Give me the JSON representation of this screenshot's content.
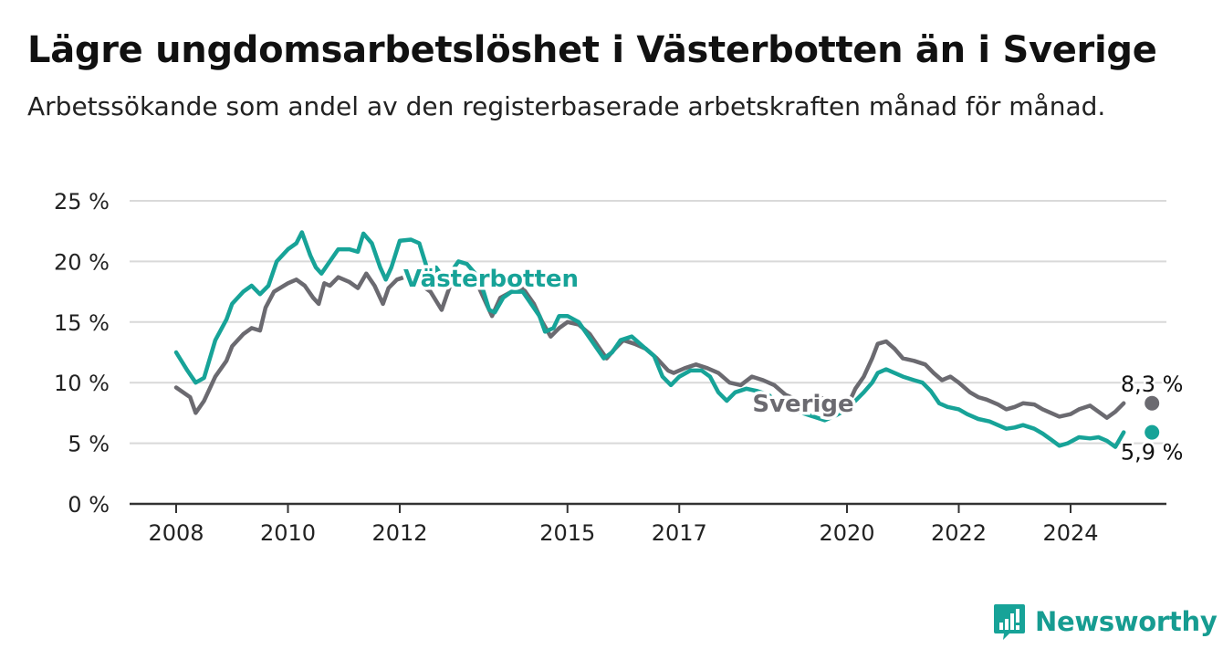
{
  "header": {
    "title": "Lägre ungdomsarbetslöshet i Västerbotten än i Sverige",
    "subtitle": "Arbetssökande som andel av den registerbaserade arbetskraften månad för månad."
  },
  "brand": {
    "name": "Newsworthy"
  },
  "colors": {
    "vasterbotten": "#17a398",
    "sverige": "#6b6a70",
    "grid": "#d9d9d9",
    "axis": "#333333"
  },
  "chart_data": {
    "type": "line",
    "y_ticks": [
      "0 %",
      "5 %",
      "10 %",
      "15 %",
      "20 %",
      "25 %"
    ],
    "ylim": [
      0,
      25
    ],
    "x_ticks": [
      {
        "label": "2008",
        "value": 2008.0
      },
      {
        "label": "2010",
        "value": 2010.0
      },
      {
        "label": "2012",
        "value": 2012.0
      },
      {
        "label": "2015",
        "value": 2015.0
      },
      {
        "label": "2017",
        "value": 2017.0
      },
      {
        "label": "2020",
        "value": 2020.0
      },
      {
        "label": "2022",
        "value": 2022.0
      },
      {
        "label": "2024",
        "value": 2024.0
      }
    ],
    "grid": true,
    "series": [
      {
        "name": "Sverige",
        "end_label": "8,3 %",
        "points": [
          [
            2008.0,
            9.6
          ],
          [
            2008.25,
            8.8
          ],
          [
            2008.35,
            7.5
          ],
          [
            2008.5,
            8.5
          ],
          [
            2008.7,
            10.5
          ],
          [
            2008.9,
            11.8
          ],
          [
            2009.0,
            13.0
          ],
          [
            2009.2,
            14.0
          ],
          [
            2009.35,
            14.5
          ],
          [
            2009.5,
            14.3
          ],
          [
            2009.6,
            16.2
          ],
          [
            2009.75,
            17.5
          ],
          [
            2010.0,
            18.2
          ],
          [
            2010.15,
            18.5
          ],
          [
            2010.3,
            18.0
          ],
          [
            2010.45,
            17.0
          ],
          [
            2010.55,
            16.5
          ],
          [
            2010.65,
            18.2
          ],
          [
            2010.75,
            18.0
          ],
          [
            2010.9,
            18.7
          ],
          [
            2011.1,
            18.3
          ],
          [
            2011.25,
            17.8
          ],
          [
            2011.4,
            19.0
          ],
          [
            2011.55,
            18.0
          ],
          [
            2011.7,
            16.5
          ],
          [
            2011.8,
            17.8
          ],
          [
            2011.95,
            18.5
          ],
          [
            2012.15,
            18.8
          ],
          [
            2012.3,
            19.0
          ],
          [
            2012.4,
            18.0
          ],
          [
            2012.55,
            17.5
          ],
          [
            2012.75,
            16.0
          ],
          [
            2012.9,
            18.0
          ],
          [
            2013.05,
            19.0
          ],
          [
            2013.2,
            18.8
          ],
          [
            2013.4,
            18.0
          ],
          [
            2013.55,
            16.5
          ],
          [
            2013.65,
            15.5
          ],
          [
            2013.8,
            17.0
          ],
          [
            2014.0,
            17.5
          ],
          [
            2014.2,
            17.8
          ],
          [
            2014.4,
            16.5
          ],
          [
            2014.55,
            15.0
          ],
          [
            2014.7,
            13.8
          ],
          [
            2014.85,
            14.5
          ],
          [
            2015.0,
            15.0
          ],
          [
            2015.2,
            14.8
          ],
          [
            2015.4,
            14.0
          ],
          [
            2015.55,
            13.0
          ],
          [
            2015.7,
            12.0
          ],
          [
            2015.85,
            12.8
          ],
          [
            2016.0,
            13.5
          ],
          [
            2016.2,
            13.2
          ],
          [
            2016.4,
            12.8
          ],
          [
            2016.6,
            12.0
          ],
          [
            2016.8,
            11.0
          ],
          [
            2016.9,
            10.8
          ],
          [
            2017.1,
            11.2
          ],
          [
            2017.3,
            11.5
          ],
          [
            2017.5,
            11.2
          ],
          [
            2017.7,
            10.8
          ],
          [
            2017.9,
            10.0
          ],
          [
            2018.1,
            9.8
          ],
          [
            2018.3,
            10.5
          ],
          [
            2018.5,
            10.2
          ],
          [
            2018.7,
            9.8
          ],
          [
            2018.9,
            9.0
          ],
          [
            2019.1,
            8.6
          ],
          [
            2019.3,
            8.3
          ],
          [
            2019.5,
            8.8
          ],
          [
            2019.7,
            8.5
          ],
          [
            2019.9,
            8.2
          ],
          [
            2020.05,
            8.5
          ],
          [
            2020.15,
            9.5
          ],
          [
            2020.3,
            10.5
          ],
          [
            2020.45,
            12.0
          ],
          [
            2020.55,
            13.2
          ],
          [
            2020.7,
            13.4
          ],
          [
            2020.85,
            12.8
          ],
          [
            2021.0,
            12.0
          ],
          [
            2021.2,
            11.8
          ],
          [
            2021.4,
            11.5
          ],
          [
            2021.55,
            10.8
          ],
          [
            2021.7,
            10.2
          ],
          [
            2021.85,
            10.5
          ],
          [
            2022.0,
            10.0
          ],
          [
            2022.2,
            9.2
          ],
          [
            2022.35,
            8.8
          ],
          [
            2022.5,
            8.6
          ],
          [
            2022.7,
            8.2
          ],
          [
            2022.85,
            7.8
          ],
          [
            2023.0,
            8.0
          ],
          [
            2023.15,
            8.3
          ],
          [
            2023.35,
            8.2
          ],
          [
            2023.5,
            7.8
          ],
          [
            2023.65,
            7.5
          ],
          [
            2023.8,
            7.2
          ],
          [
            2024.0,
            7.4
          ],
          [
            2024.15,
            7.8
          ],
          [
            2024.35,
            8.1
          ],
          [
            2024.5,
            7.6
          ],
          [
            2024.65,
            7.1
          ],
          [
            2024.8,
            7.6
          ],
          [
            2024.95,
            8.3
          ]
        ]
      },
      {
        "name": "Västerbotten",
        "end_label": "5,9 %",
        "points": [
          [
            2008.0,
            12.5
          ],
          [
            2008.2,
            11.0
          ],
          [
            2008.35,
            10.0
          ],
          [
            2008.5,
            10.4
          ],
          [
            2008.7,
            13.5
          ],
          [
            2008.9,
            15.2
          ],
          [
            2009.0,
            16.5
          ],
          [
            2009.2,
            17.5
          ],
          [
            2009.35,
            18.0
          ],
          [
            2009.5,
            17.3
          ],
          [
            2009.65,
            18.0
          ],
          [
            2009.8,
            20.0
          ],
          [
            2010.0,
            21.0
          ],
          [
            2010.15,
            21.5
          ],
          [
            2010.25,
            22.4
          ],
          [
            2010.4,
            20.5
          ],
          [
            2010.5,
            19.5
          ],
          [
            2010.6,
            19.0
          ],
          [
            2010.75,
            20.0
          ],
          [
            2010.9,
            21.0
          ],
          [
            2011.1,
            21.0
          ],
          [
            2011.25,
            20.8
          ],
          [
            2011.35,
            22.3
          ],
          [
            2011.5,
            21.5
          ],
          [
            2011.65,
            19.5
          ],
          [
            2011.75,
            18.5
          ],
          [
            2011.85,
            19.5
          ],
          [
            2012.0,
            21.7
          ],
          [
            2012.2,
            21.8
          ],
          [
            2012.35,
            21.5
          ],
          [
            2012.45,
            20.0
          ],
          [
            2012.55,
            18.5
          ],
          [
            2012.65,
            19.5
          ],
          [
            2012.8,
            18.5
          ],
          [
            2012.9,
            19.0
          ],
          [
            2013.05,
            20.0
          ],
          [
            2013.2,
            19.8
          ],
          [
            2013.35,
            19.0
          ],
          [
            2013.5,
            17.5
          ],
          [
            2013.6,
            16.0
          ],
          [
            2013.7,
            15.8
          ],
          [
            2013.85,
            17.0
          ],
          [
            2014.0,
            17.5
          ],
          [
            2014.2,
            17.5
          ],
          [
            2014.35,
            16.5
          ],
          [
            2014.5,
            15.5
          ],
          [
            2014.6,
            14.2
          ],
          [
            2014.75,
            14.5
          ],
          [
            2014.85,
            15.5
          ],
          [
            2015.0,
            15.5
          ],
          [
            2015.2,
            15.0
          ],
          [
            2015.35,
            14.0
          ],
          [
            2015.5,
            13.0
          ],
          [
            2015.65,
            12.0
          ],
          [
            2015.8,
            12.5
          ],
          [
            2015.95,
            13.5
          ],
          [
            2016.15,
            13.8
          ],
          [
            2016.35,
            13.0
          ],
          [
            2016.55,
            12.2
          ],
          [
            2016.7,
            10.5
          ],
          [
            2016.85,
            9.8
          ],
          [
            2017.0,
            10.5
          ],
          [
            2017.2,
            11.0
          ],
          [
            2017.4,
            11.0
          ],
          [
            2017.55,
            10.5
          ],
          [
            2017.7,
            9.2
          ],
          [
            2017.85,
            8.5
          ],
          [
            2018.0,
            9.2
          ],
          [
            2018.2,
            9.5
          ],
          [
            2018.4,
            9.3
          ],
          [
            2018.6,
            9.0
          ],
          [
            2018.8,
            8.0
          ],
          [
            2019.0,
            7.8
          ],
          [
            2019.2,
            7.5
          ],
          [
            2019.4,
            7.2
          ],
          [
            2019.6,
            6.9
          ],
          [
            2019.8,
            7.3
          ],
          [
            2020.0,
            7.8
          ],
          [
            2020.15,
            8.5
          ],
          [
            2020.3,
            9.2
          ],
          [
            2020.45,
            10.0
          ],
          [
            2020.55,
            10.8
          ],
          [
            2020.7,
            11.1
          ],
          [
            2020.85,
            10.8
          ],
          [
            2021.0,
            10.5
          ],
          [
            2021.2,
            10.2
          ],
          [
            2021.35,
            10.0
          ],
          [
            2021.5,
            9.3
          ],
          [
            2021.65,
            8.3
          ],
          [
            2021.8,
            8.0
          ],
          [
            2022.0,
            7.8
          ],
          [
            2022.15,
            7.4
          ],
          [
            2022.35,
            7.0
          ],
          [
            2022.55,
            6.8
          ],
          [
            2022.7,
            6.5
          ],
          [
            2022.85,
            6.2
          ],
          [
            2023.0,
            6.3
          ],
          [
            2023.15,
            6.5
          ],
          [
            2023.35,
            6.2
          ],
          [
            2023.5,
            5.8
          ],
          [
            2023.65,
            5.3
          ],
          [
            2023.8,
            4.8
          ],
          [
            2023.95,
            5.0
          ],
          [
            2024.15,
            5.5
          ],
          [
            2024.35,
            5.4
          ],
          [
            2024.5,
            5.5
          ],
          [
            2024.65,
            5.2
          ],
          [
            2024.8,
            4.7
          ],
          [
            2024.95,
            5.9
          ]
        ]
      }
    ],
    "labels": [
      {
        "series": "Västerbotten",
        "text": "Västerbotten"
      },
      {
        "series": "Sverige",
        "text": "Sverige"
      }
    ]
  }
}
